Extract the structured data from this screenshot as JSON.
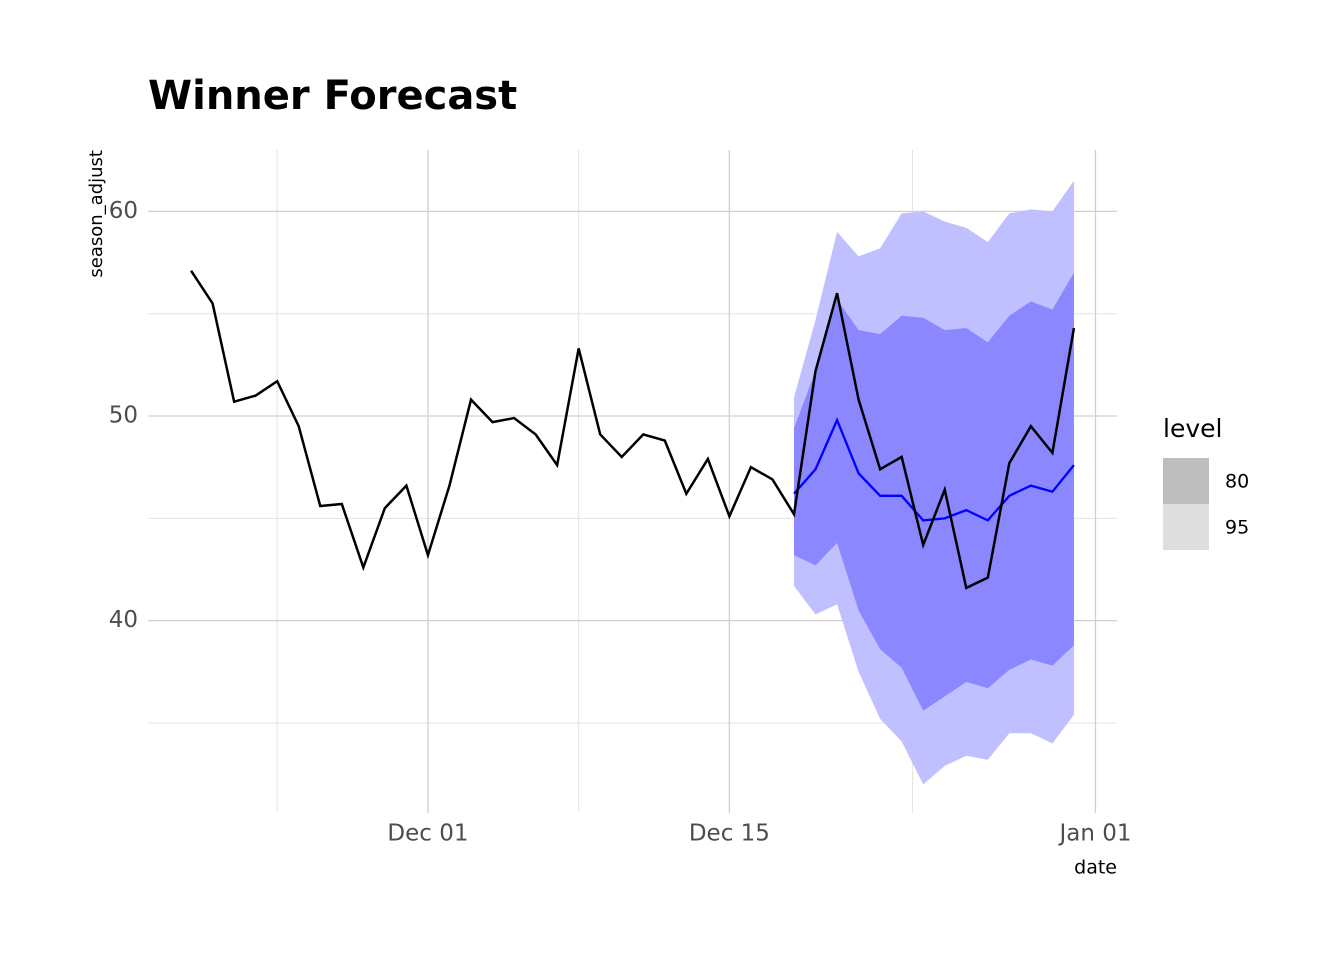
{
  "chart_data": {
    "type": "line",
    "title": "Winner Forecast",
    "ylabel": "season_adjust",
    "xlabel": "date",
    "x": [
      "Nov 20",
      "Nov 21",
      "Nov 22",
      "Nov 23",
      "Nov 24",
      "Nov 25",
      "Nov 26",
      "Nov 27",
      "Nov 28",
      "Nov 29",
      "Nov 30",
      "Dec 01",
      "Dec 02",
      "Dec 03",
      "Dec 04",
      "Dec 05",
      "Dec 06",
      "Dec 07",
      "Dec 08",
      "Dec 09",
      "Dec 10",
      "Dec 11",
      "Dec 12",
      "Dec 13",
      "Dec 14",
      "Dec 15",
      "Dec 16",
      "Dec 17",
      "Dec 18",
      "Dec 19",
      "Dec 20",
      "Dec 21",
      "Dec 22",
      "Dec 23",
      "Dec 24",
      "Dec 25",
      "Dec 26",
      "Dec 27",
      "Dec 28",
      "Dec 29",
      "Dec 30",
      "Dec 31"
    ],
    "values": [
      57.1,
      55.5,
      50.7,
      51.0,
      51.7,
      49.5,
      45.6,
      45.7,
      42.6,
      45.5,
      46.6,
      43.2,
      46.6,
      50.8,
      49.7,
      49.9,
      49.1,
      47.6,
      53.3,
      49.1,
      48.0,
      49.1,
      48.8,
      46.2,
      47.9,
      45.1,
      47.5,
      46.9,
      45.2,
      52.2,
      56.0,
      50.8,
      47.4,
      48.0,
      43.7,
      46.4,
      41.6,
      42.1,
      47.7,
      49.5,
      48.2,
      54.3
    ],
    "color": "#000000",
    "forecast_x": [
      "Dec 18",
      "Dec 19",
      "Dec 20",
      "Dec 21",
      "Dec 22",
      "Dec 23",
      "Dec 24",
      "Dec 25",
      "Dec 26",
      "Dec 27",
      "Dec 28",
      "Dec 29",
      "Dec 30",
      "Dec 31"
    ],
    "forecast": [
      46.2,
      47.4,
      49.8,
      47.2,
      46.1,
      46.1,
      44.9,
      45.0,
      45.4,
      44.9,
      46.1,
      46.6,
      46.3,
      47.6
    ],
    "forecast_color": "#0000ff",
    "legend_title": "level",
    "intervals": [
      {
        "level": 80,
        "color": "#8a87ff",
        "legend_color": "#bebebe",
        "upper": [
          49.4,
          52.2,
          55.7,
          54.2,
          54.0,
          54.9,
          54.8,
          54.2,
          54.3,
          53.6,
          54.9,
          55.6,
          55.2,
          57.0
        ],
        "lower": [
          43.2,
          42.7,
          43.8,
          40.5,
          38.6,
          37.7,
          35.6,
          36.3,
          37.0,
          36.7,
          37.6,
          38.1,
          37.8,
          38.8
        ]
      },
      {
        "level": 95,
        "color": "#c0bfff",
        "legend_color": "#dedede",
        "upper": [
          50.9,
          54.7,
          59.0,
          57.8,
          58.2,
          59.9,
          60.0,
          59.5,
          59.2,
          58.5,
          59.9,
          60.1,
          60.0,
          61.5
        ],
        "lower": [
          41.7,
          40.3,
          40.8,
          37.5,
          35.2,
          34.1,
          32.0,
          32.9,
          33.4,
          33.2,
          34.5,
          34.5,
          34.0,
          35.4
        ]
      }
    ],
    "xlim": [
      "Nov 18",
      "Jan 02"
    ],
    "xticks": [
      "Dec 01",
      "Dec 15",
      "Jan 01"
    ],
    "ylim": [
      30.6,
      63
    ],
    "yticks": [
      40,
      50,
      60
    ],
    "grid": true
  }
}
